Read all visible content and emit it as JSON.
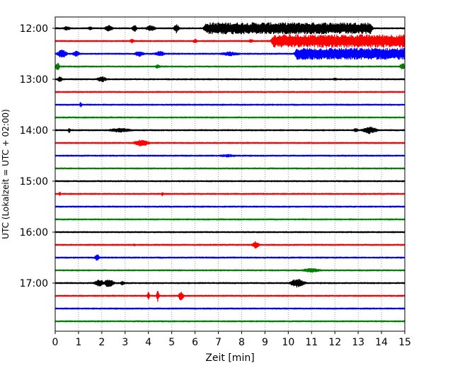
{
  "chart_data": {
    "type": "line",
    "title": "",
    "xlabel": "Zeit  [min]",
    "ylabel": "UTC (Lokalzeit = UTC + 02:00)",
    "xlim": [
      0,
      15
    ],
    "x_ticks": [
      "0",
      "1",
      "2",
      "3",
      "4",
      "5",
      "6",
      "7",
      "8",
      "9",
      "10",
      "11",
      "12",
      "13",
      "14",
      "15"
    ],
    "y_ticks": [
      "12:00",
      "13:00",
      "14:00",
      "15:00",
      "16:00",
      "17:00"
    ],
    "grid": "vertical dotted lines at each minute",
    "trace_interval_minutes": 15,
    "traces": [
      {
        "start": "12:00",
        "color": "#000000",
        "events": [
          {
            "t": 0.5,
            "amp": 3,
            "w": 0.15
          },
          {
            "t": 1.5,
            "amp": 2.5,
            "w": 0.1
          },
          {
            "t": 2.3,
            "amp": 5,
            "w": 0.15
          },
          {
            "t": 3.4,
            "amp": 5,
            "w": 0.1
          },
          {
            "t": 4.1,
            "amp": 4,
            "w": 0.2
          },
          {
            "t": 5.2,
            "amp": 7,
            "w": 0.1
          },
          {
            "t": 10.0,
            "amp": 8,
            "w": 3.5,
            "flat": true
          }
        ]
      },
      {
        "start": "12:15",
        "color": "#ff0000",
        "events": [
          {
            "t": 3.3,
            "amp": 3,
            "w": 0.1
          },
          {
            "t": 6.0,
            "amp": 3,
            "w": 0.1
          },
          {
            "t": 8.4,
            "amp": 2.5,
            "w": 0.1
          },
          {
            "t": 12.2,
            "amp": 9,
            "w": 2.8,
            "flat": true
          }
        ]
      },
      {
        "start": "12:30",
        "color": "#0000ff",
        "events": [
          {
            "t": 0.3,
            "amp": 6,
            "w": 0.2
          },
          {
            "t": 0.9,
            "amp": 4,
            "w": 0.15
          },
          {
            "t": 3.6,
            "amp": 4,
            "w": 0.2
          },
          {
            "t": 4.5,
            "amp": 4,
            "w": 0.2
          },
          {
            "t": 7.5,
            "amp": 3,
            "w": 0.4
          },
          {
            "t": 12.7,
            "amp": 8,
            "w": 2.3,
            "flat": true
          }
        ]
      },
      {
        "start": "12:45",
        "color": "#008000",
        "events": [
          {
            "t": 0.1,
            "amp": 5,
            "w": 0.1
          },
          {
            "t": 4.4,
            "amp": 3,
            "w": 0.1
          },
          {
            "t": 14.9,
            "amp": 5,
            "w": 0.1
          }
        ]
      },
      {
        "start": "13:00",
        "color": "#000000",
        "events": [
          {
            "t": 0.2,
            "amp": 4,
            "w": 0.1
          },
          {
            "t": 2.0,
            "amp": 4,
            "w": 0.2
          },
          {
            "t": 12.0,
            "amp": 2,
            "w": 0.1
          }
        ]
      },
      {
        "start": "13:15",
        "color": "#ff0000",
        "events": []
      },
      {
        "start": "13:30",
        "color": "#0000ff",
        "events": [
          {
            "t": 1.1,
            "amp": 4,
            "w": 0.05
          }
        ]
      },
      {
        "start": "13:45",
        "color": "#008000",
        "events": []
      },
      {
        "start": "14:00",
        "color": "#000000",
        "events": [
          {
            "t": 0.6,
            "amp": 4,
            "w": 0.05
          },
          {
            "t": 2.8,
            "amp": 3,
            "w": 0.5
          },
          {
            "t": 12.9,
            "amp": 3,
            "w": 0.1
          },
          {
            "t": 13.5,
            "amp": 5,
            "w": 0.3
          }
        ]
      },
      {
        "start": "14:15",
        "color": "#ff0000",
        "events": [
          {
            "t": 3.7,
            "amp": 5,
            "w": 0.3
          }
        ]
      },
      {
        "start": "14:30",
        "color": "#0000ff",
        "events": [
          {
            "t": 7.4,
            "amp": 2,
            "w": 0.4
          }
        ]
      },
      {
        "start": "14:45",
        "color": "#008000",
        "events": []
      },
      {
        "start": "15:00",
        "color": "#000000",
        "events": []
      },
      {
        "start": "15:15",
        "color": "#ff0000",
        "events": [
          {
            "t": 0.2,
            "amp": 3,
            "w": 0.05
          },
          {
            "t": 4.6,
            "amp": 3,
            "w": 0.05
          }
        ]
      },
      {
        "start": "15:30",
        "color": "#0000ff",
        "events": []
      },
      {
        "start": "15:45",
        "color": "#008000",
        "events": []
      },
      {
        "start": "16:00",
        "color": "#000000",
        "events": []
      },
      {
        "start": "16:15",
        "color": "#ff0000",
        "events": [
          {
            "t": 3.4,
            "amp": 2,
            "w": 0.05
          },
          {
            "t": 8.6,
            "amp": 5,
            "w": 0.15
          }
        ]
      },
      {
        "start": "16:30",
        "color": "#0000ff",
        "events": [
          {
            "t": 1.8,
            "amp": 5,
            "w": 0.1
          }
        ]
      },
      {
        "start": "16:45",
        "color": "#008000",
        "events": [
          {
            "t": 11.0,
            "amp": 3,
            "w": 0.4
          }
        ]
      },
      {
        "start": "17:00",
        "color": "#000000",
        "events": [
          {
            "t": 1.9,
            "amp": 5,
            "w": 0.2
          },
          {
            "t": 2.3,
            "amp": 6,
            "w": 0.2
          },
          {
            "t": 2.9,
            "amp": 3,
            "w": 0.1
          },
          {
            "t": 10.4,
            "amp": 6,
            "w": 0.3
          }
        ]
      },
      {
        "start": "17:15",
        "color": "#ff0000",
        "events": [
          {
            "t": 4.0,
            "amp": 7,
            "w": 0.05
          },
          {
            "t": 4.4,
            "amp": 9,
            "w": 0.05
          },
          {
            "t": 5.4,
            "amp": 7,
            "w": 0.1
          }
        ]
      },
      {
        "start": "17:30",
        "color": "#0000ff",
        "events": []
      },
      {
        "start": "17:45",
        "color": "#008000",
        "events": []
      }
    ]
  }
}
